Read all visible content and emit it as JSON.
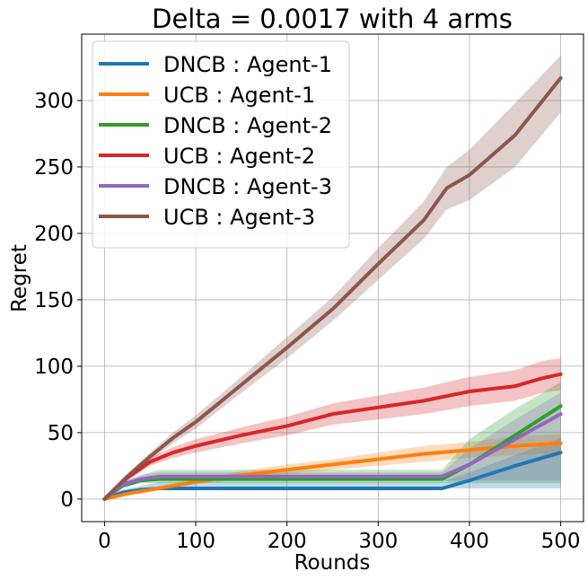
{
  "chart_data": {
    "type": "line",
    "title": "Delta = 0.0017 with 4 arms",
    "xlabel": "Rounds",
    "ylabel": "Regret",
    "xlim": [
      -25,
      525
    ],
    "ylim": [
      -17,
      350
    ],
    "xticks": [
      0,
      100,
      200,
      300,
      400,
      500
    ],
    "yticks": [
      0,
      50,
      100,
      150,
      200,
      250,
      300
    ],
    "grid": true,
    "legend_position": "top-left",
    "series": [
      {
        "name": "DNCB : Agent-1",
        "color": "#1f77b4",
        "x": [
          0,
          20,
          40,
          60,
          100,
          200,
          300,
          370,
          400,
          450,
          500
        ],
        "y": [
          0,
          5,
          7,
          8,
          8,
          8,
          8,
          8,
          14,
          25,
          35
        ],
        "lower": [
          0,
          5,
          7,
          8,
          8,
          8,
          8,
          8,
          8,
          8,
          8
        ],
        "upper": [
          0,
          7,
          10,
          13,
          13,
          13,
          13,
          13,
          20,
          33,
          46
        ]
      },
      {
        "name": "UCB : Agent-1",
        "color": "#ff7f0e",
        "x": [
          0,
          25,
          50,
          75,
          100,
          150,
          200,
          250,
          300,
          350,
          400,
          450,
          500
        ],
        "y": [
          0,
          4,
          7,
          10,
          13,
          18,
          22,
          26,
          30,
          34,
          37,
          40,
          42
        ],
        "lower": [
          0,
          3,
          6,
          8,
          11,
          15,
          19,
          22,
          25,
          28,
          31,
          33,
          35
        ],
        "upper": [
          0,
          5,
          8,
          12,
          15,
          21,
          26,
          30,
          35,
          40,
          43,
          47,
          49
        ]
      },
      {
        "name": "DNCB : Agent-2",
        "color": "#2ca02c",
        "x": [
          0,
          20,
          40,
          60,
          100,
          200,
          300,
          370,
          400,
          450,
          500
        ],
        "y": [
          0,
          10,
          14,
          15,
          15,
          15,
          15,
          15,
          26,
          48,
          70
        ],
        "lower": [
          0,
          9,
          12,
          12,
          12,
          12,
          12,
          12,
          12,
          12,
          12
        ],
        "upper": [
          0,
          13,
          18,
          22,
          22,
          22,
          22,
          22,
          45,
          68,
          88
        ]
      },
      {
        "name": "UCB : Agent-2",
        "color": "#d62728",
        "x": [
          0,
          25,
          50,
          75,
          100,
          150,
          200,
          250,
          300,
          350,
          400,
          450,
          480,
          500
        ],
        "y": [
          0,
          16,
          28,
          35,
          40,
          48,
          55,
          64,
          69,
          74,
          81,
          85,
          91,
          94
        ],
        "lower": [
          0,
          14,
          25,
          31,
          35,
          42,
          48,
          56,
          60,
          64,
          70,
          74,
          80,
          82
        ],
        "upper": [
          0,
          18,
          31,
          39,
          45,
          54,
          62,
          72,
          78,
          84,
          92,
          97,
          104,
          106
        ]
      },
      {
        "name": "DNCB : Agent-3",
        "color": "#9467bd",
        "x": [
          0,
          20,
          40,
          60,
          100,
          200,
          300,
          370,
          400,
          450,
          500
        ],
        "y": [
          0,
          11,
          15,
          17,
          17,
          17,
          17,
          17,
          26,
          45,
          64
        ],
        "lower": [
          0,
          10,
          13,
          14,
          14,
          14,
          14,
          14,
          14,
          14,
          14
        ],
        "upper": [
          0,
          13,
          18,
          20,
          20,
          20,
          20,
          20,
          38,
          60,
          80
        ]
      },
      {
        "name": "UCB : Agent-3",
        "color": "#8c564b",
        "x": [
          0,
          25,
          50,
          75,
          100,
          150,
          200,
          250,
          300,
          350,
          375,
          400,
          450,
          500
        ],
        "y": [
          0,
          17,
          32,
          46,
          58,
          86,
          114,
          143,
          177,
          210,
          234,
          244,
          274,
          317
        ],
        "lower": [
          0,
          15,
          29,
          42,
          53,
          80,
          106,
          134,
          165,
          196,
          218,
          225,
          250,
          291
        ],
        "upper": [
          0,
          19,
          35,
          50,
          63,
          92,
          122,
          152,
          189,
          224,
          250,
          263,
          298,
          334
        ]
      }
    ]
  }
}
